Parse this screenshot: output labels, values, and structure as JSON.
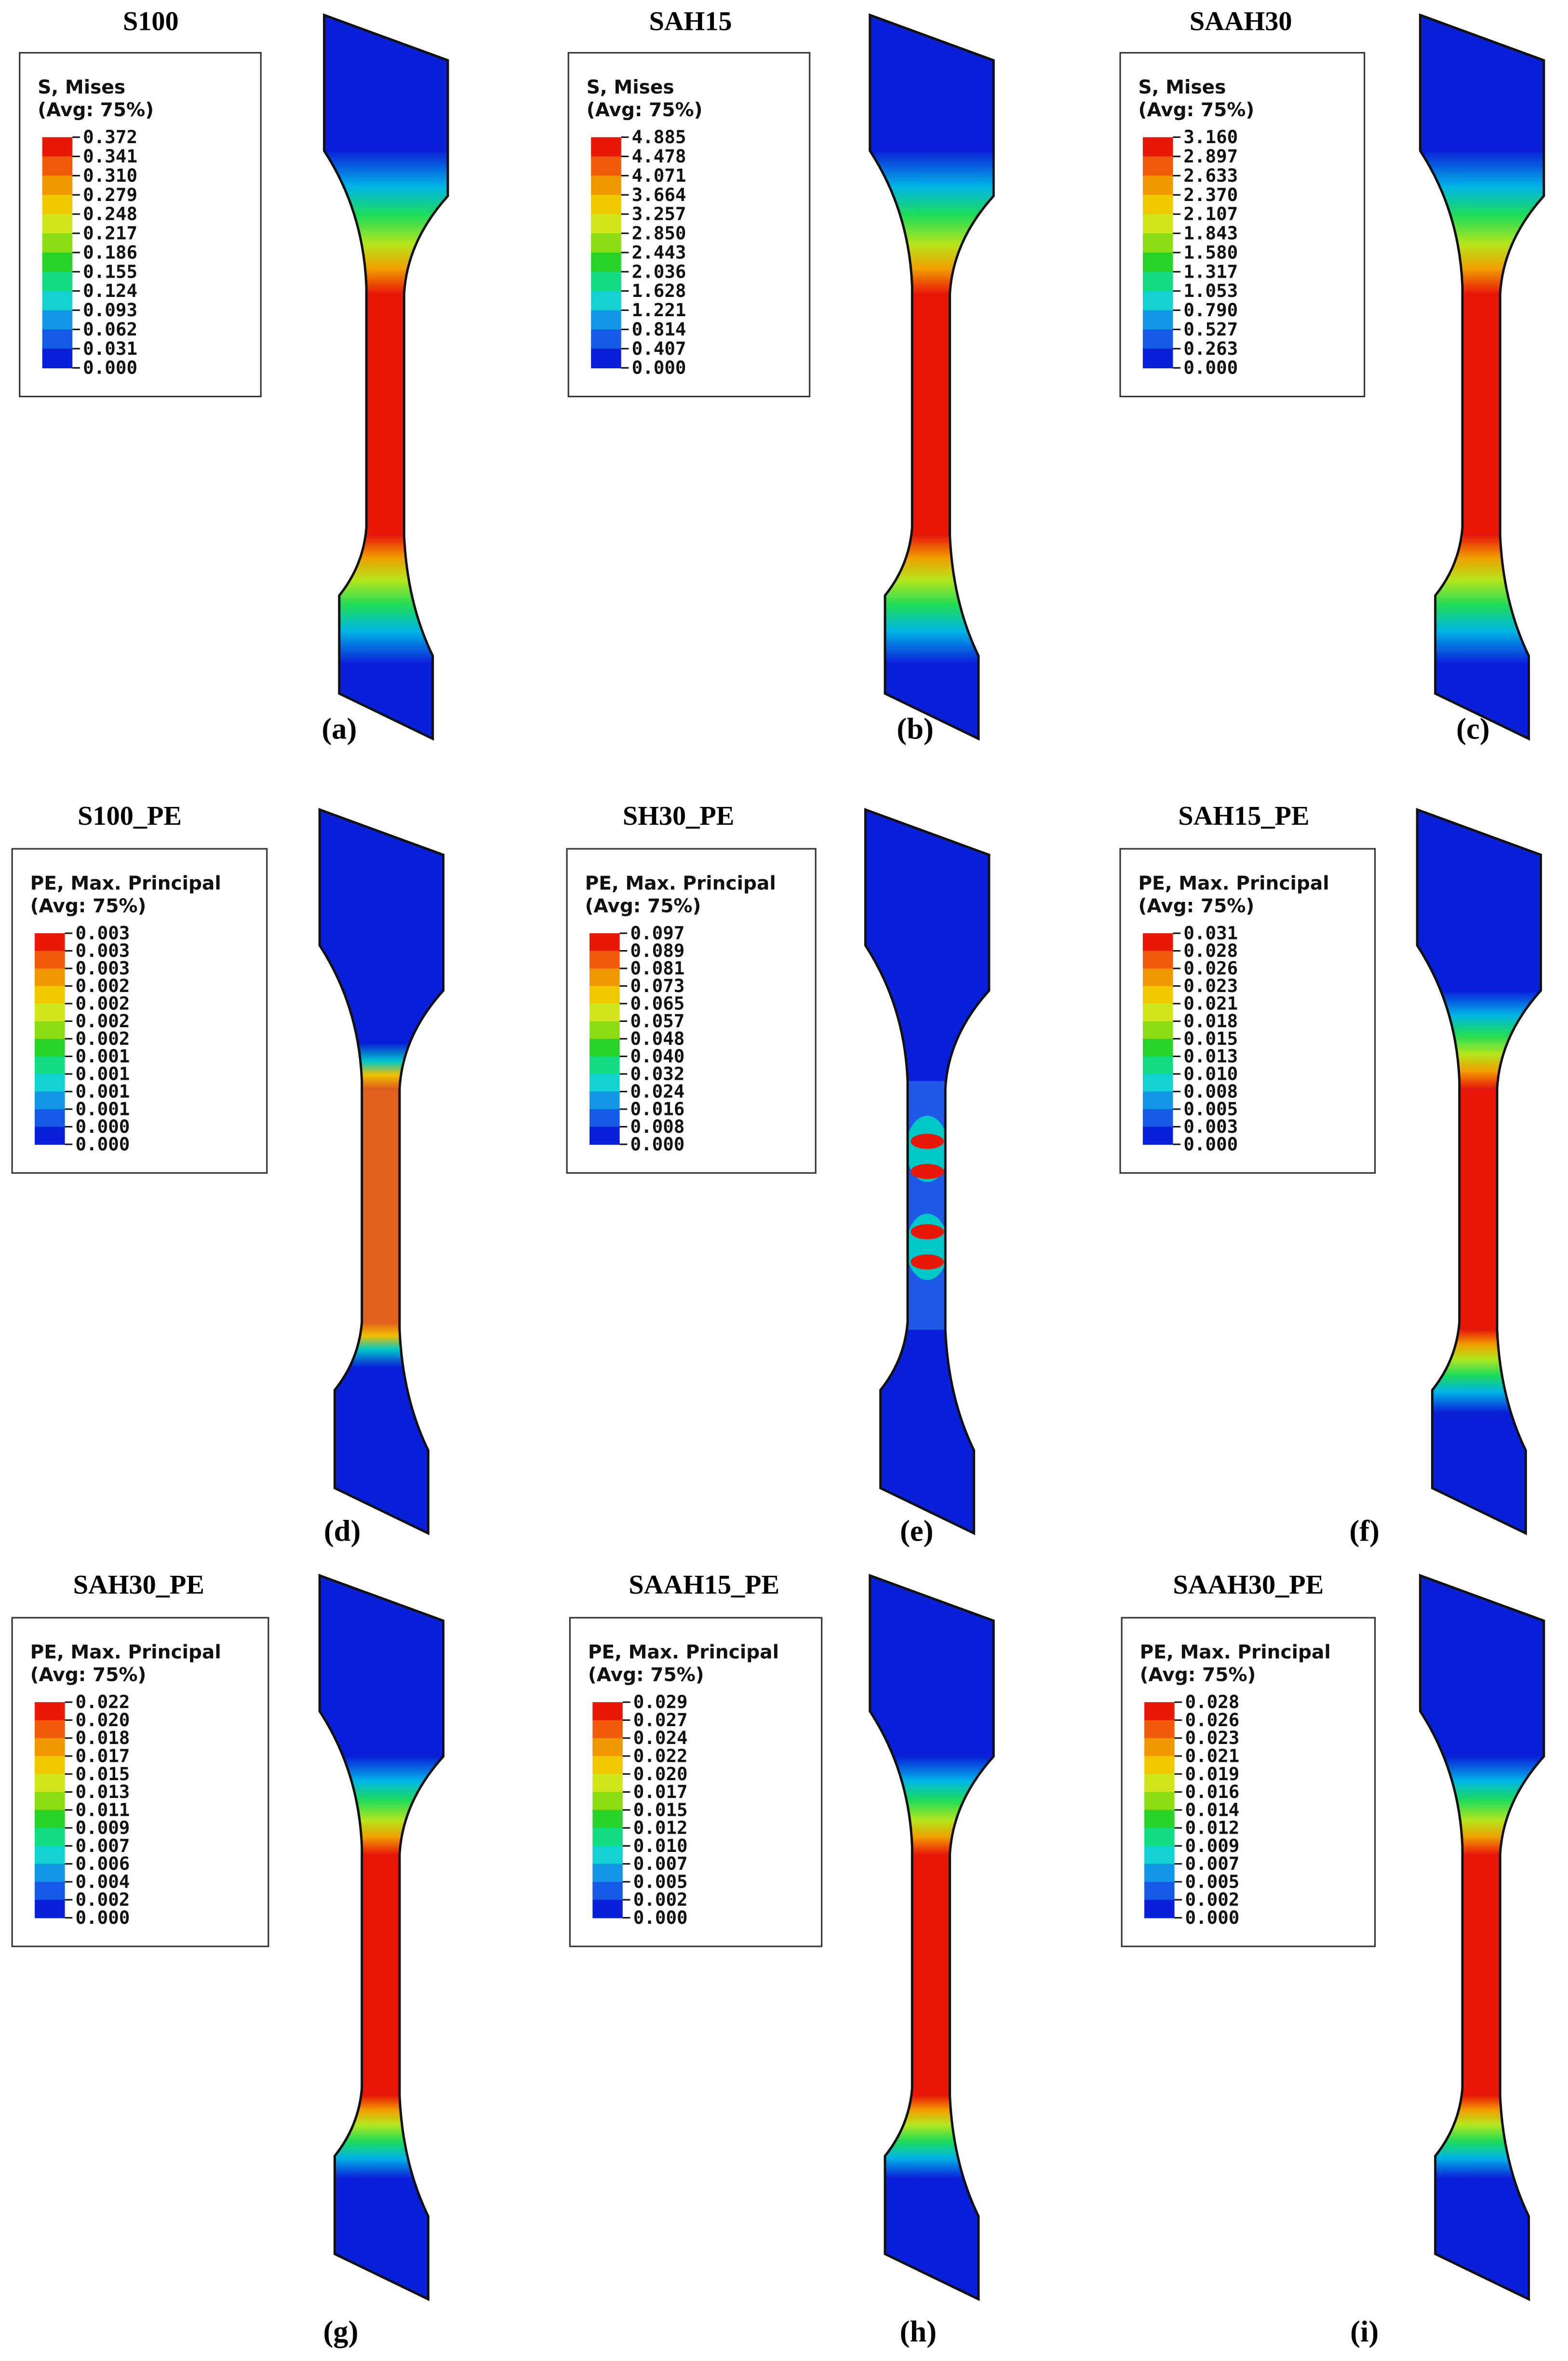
{
  "panels": [
    {
      "title": "S100",
      "legend": {
        "header": [
          "S, Mises",
          "(Avg: 75%)"
        ],
        "values": [
          "0.372",
          "0.341",
          "0.310",
          "0.279",
          "0.248",
          "0.217",
          "0.186",
          "0.155",
          "0.124",
          "0.093",
          "0.062",
          "0.031",
          "0.000"
        ]
      },
      "caption": "(a)"
    },
    {
      "title": "SAH15",
      "legend": {
        "header": [
          "S, Mises",
          "(Avg: 75%)"
        ],
        "values": [
          "4.885",
          "4.478",
          "4.071",
          "3.664",
          "3.257",
          "2.850",
          "2.443",
          "2.036",
          "1.628",
          "1.221",
          "0.814",
          "0.407",
          "0.000"
        ]
      },
      "caption": "(b)"
    },
    {
      "title": "SAAH30",
      "legend": {
        "header": [
          "S, Mises",
          "(Avg: 75%)"
        ],
        "values": [
          "3.160",
          "2.897",
          "2.633",
          "2.370",
          "2.107",
          "1.843",
          "1.580",
          "1.317",
          "1.053",
          "0.790",
          "0.527",
          "0.263",
          "0.000"
        ]
      },
      "caption": "(c)"
    },
    {
      "title": "S100_PE",
      "legend": {
        "header": [
          "PE, Max. Principal",
          "(Avg: 75%)"
        ],
        "values": [
          "0.003",
          "0.003",
          "0.003",
          "0.002",
          "0.002",
          "0.002",
          "0.002",
          "0.001",
          "0.001",
          "0.001",
          "0.001",
          "0.000",
          "0.000"
        ]
      },
      "caption": "(d)"
    },
    {
      "title": "SH30_PE",
      "legend": {
        "header": [
          "PE, Max. Principal",
          "(Avg: 75%)"
        ],
        "values": [
          "0.097",
          "0.089",
          "0.081",
          "0.073",
          "0.065",
          "0.057",
          "0.048",
          "0.040",
          "0.032",
          "0.024",
          "0.016",
          "0.008",
          "0.000"
        ]
      },
      "caption": "(e)"
    },
    {
      "title": "SAH15_PE",
      "legend": {
        "header": [
          "PE, Max. Principal",
          "(Avg: 75%)"
        ],
        "values": [
          "0.031",
          "0.028",
          "0.026",
          "0.023",
          "0.021",
          "0.018",
          "0.015",
          "0.013",
          "0.010",
          "0.008",
          "0.005",
          "0.003",
          "0.000"
        ]
      },
      "caption": "(f)"
    },
    {
      "title": "SAH30_PE",
      "legend": {
        "header": [
          "PE, Max. Principal",
          "(Avg: 75%)"
        ],
        "values": [
          "0.022",
          "0.020",
          "0.018",
          "0.017",
          "0.015",
          "0.013",
          "0.011",
          "0.009",
          "0.007",
          "0.006",
          "0.004",
          "0.002",
          "0.000"
        ]
      },
      "caption": "(g)"
    },
    {
      "title": "SAAH15_PE",
      "legend": {
        "header": [
          "PE, Max. Principal",
          "(Avg: 75%)"
        ],
        "values": [
          "0.029",
          "0.027",
          "0.024",
          "0.022",
          "0.020",
          "0.017",
          "0.015",
          "0.012",
          "0.010",
          "0.007",
          "0.005",
          "0.002",
          "0.000"
        ]
      },
      "caption": "(h)"
    },
    {
      "title": "SAAH30_PE",
      "legend": {
        "header": [
          "PE, Max. Principal",
          "(Avg: 75%)"
        ],
        "values": [
          "0.028",
          "0.026",
          "0.023",
          "0.021",
          "0.019",
          "0.016",
          "0.014",
          "0.012",
          "0.009",
          "0.007",
          "0.005",
          "0.002",
          "0.000"
        ]
      },
      "caption": "(i)"
    }
  ]
}
